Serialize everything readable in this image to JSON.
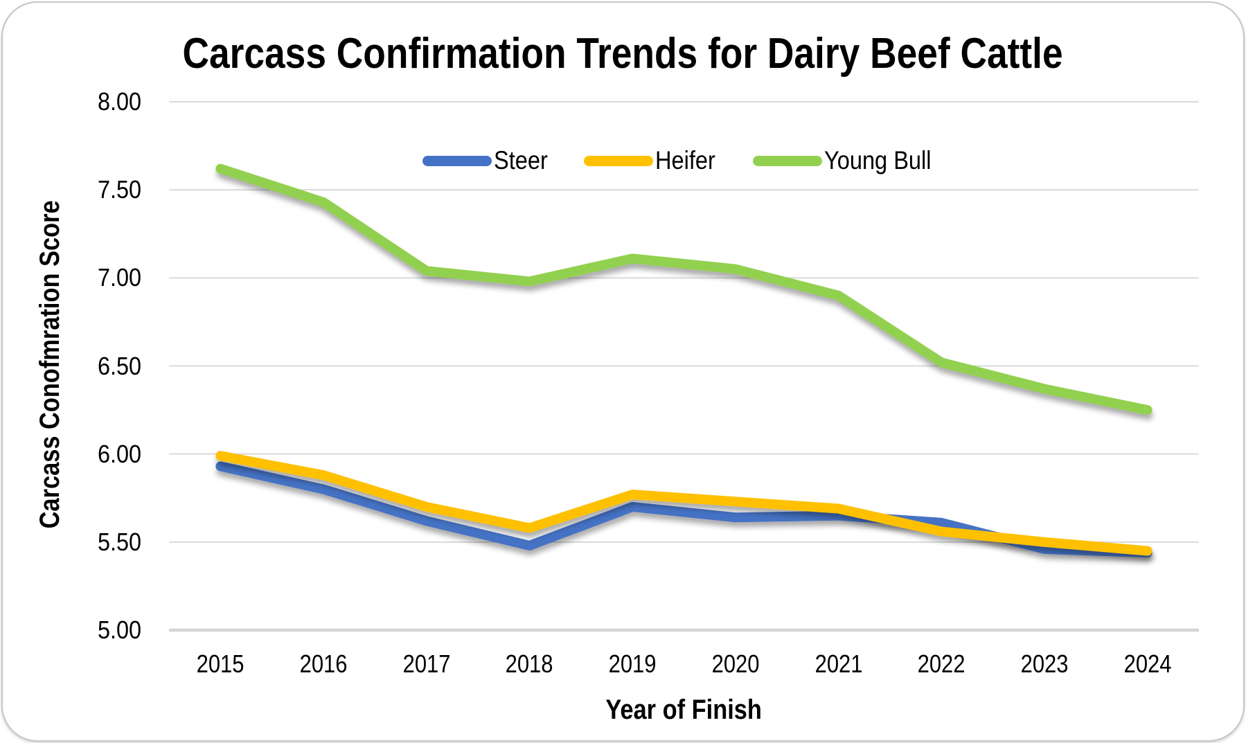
{
  "chart_data": {
    "type": "line",
    "title": "Carcass Confirmation Trends for Dairy Beef Cattle",
    "xlabel": "Year of Finish",
    "ylabel": "Carcass Conofmration Score",
    "x": [
      2015,
      2016,
      2017,
      2018,
      2019,
      2020,
      2021,
      2022,
      2023,
      2024
    ],
    "ylim": [
      5.0,
      8.0
    ],
    "ytick_labels": [
      "8.00",
      "7.50",
      "7.00",
      "6.50",
      "6.00",
      "5.50",
      "5.00"
    ],
    "grid": true,
    "legend_position": "top-inside",
    "series": [
      {
        "name": "Steer",
        "color": "#4472C4",
        "values": [
          5.93,
          5.8,
          5.62,
          5.48,
          5.7,
          5.64,
          5.65,
          5.61,
          5.46,
          5.44
        ]
      },
      {
        "name": "Heifer",
        "color": "#FFC000",
        "values": [
          5.99,
          5.88,
          5.7,
          5.58,
          5.77,
          5.73,
          5.69,
          5.56,
          5.5,
          5.45
        ]
      },
      {
        "name": "Young Bull",
        "color": "#92D050",
        "values": [
          7.62,
          7.43,
          7.04,
          6.98,
          7.11,
          7.05,
          6.9,
          6.52,
          6.37,
          6.25
        ]
      }
    ],
    "style": {
      "gridline_color": "#D9D9D9",
      "axis_line_color": "#D4D4D4",
      "text_color": "#000000",
      "line_width": 14
    }
  }
}
